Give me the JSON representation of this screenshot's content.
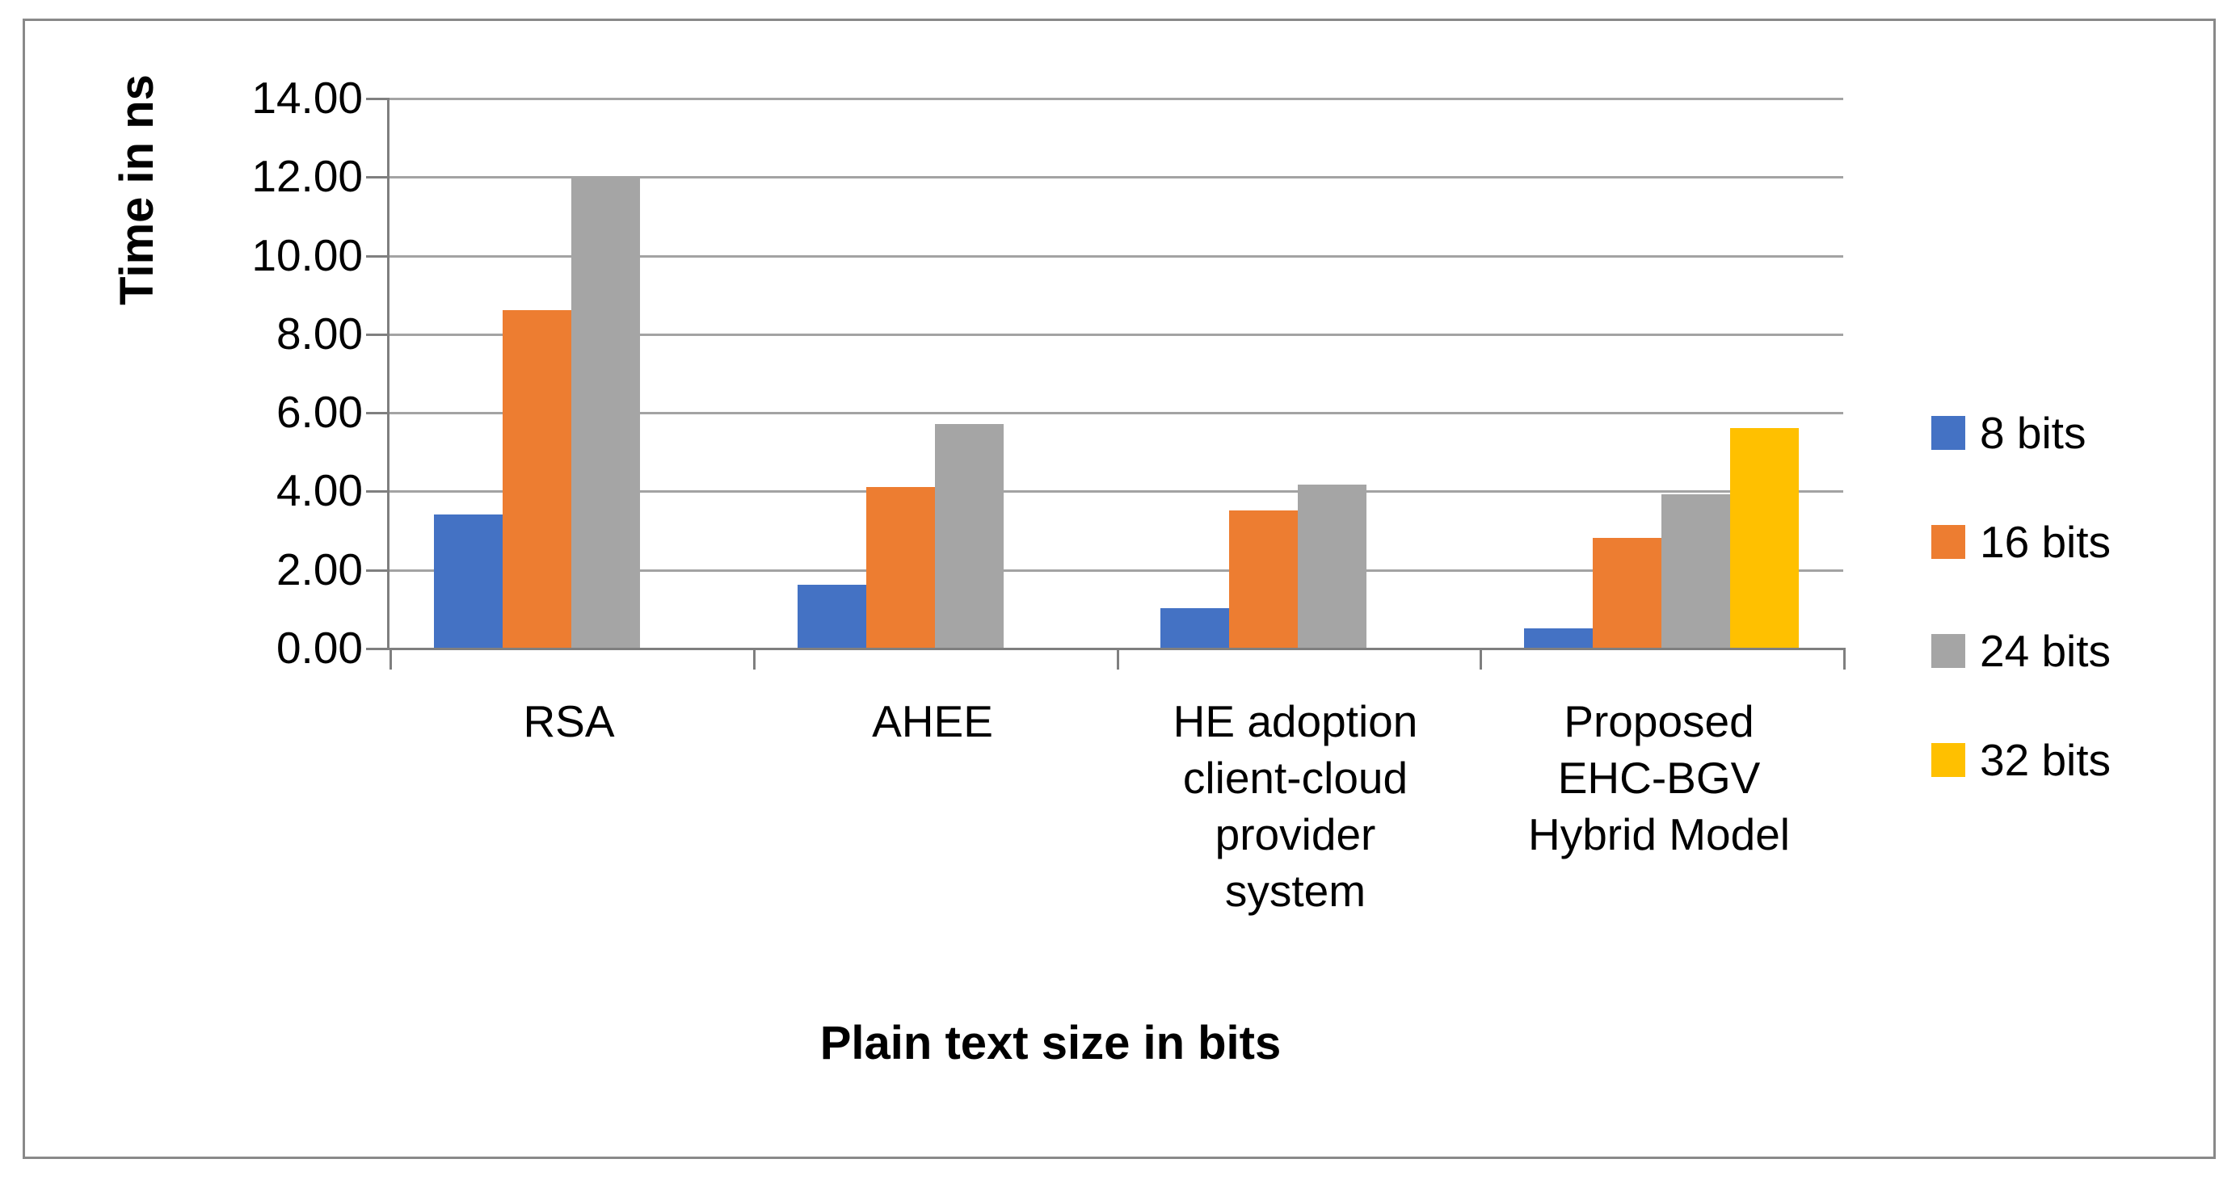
{
  "chart_data": {
    "type": "bar",
    "title": "",
    "categories": [
      "RSA",
      "AHEE",
      "HE adoption client-cloud provider system",
      "Proposed EHC-BGV Hybrid Model"
    ],
    "category_display_lines": [
      [
        "RSA"
      ],
      [
        "AHEE"
      ],
      [
        "HE adoption",
        "client-cloud",
        "provider",
        "system"
      ],
      [
        "Proposed",
        "EHC-BGV",
        "Hybrid Model"
      ]
    ],
    "series": [
      {
        "name": "8 bits",
        "color": "#4472C4",
        "values": [
          3.4,
          1.6,
          1.0,
          0.5
        ]
      },
      {
        "name": "16 bits",
        "color": "#ED7D31",
        "values": [
          8.6,
          4.1,
          3.5,
          2.8
        ]
      },
      {
        "name": "24 bits",
        "color": "#A5A5A5",
        "values": [
          12.0,
          5.7,
          4.15,
          3.9
        ]
      },
      {
        "name": "32 bits",
        "color": "#FFC000",
        "values": [
          null,
          null,
          null,
          5.6
        ]
      }
    ],
    "xlabel": "Plain text size in bits",
    "ylabel": "Time in ns",
    "ylim": [
      0,
      14
    ],
    "ytick_step": 2,
    "ytick_labels": [
      "0.00",
      "2.00",
      "4.00",
      "6.00",
      "8.00",
      "10.00",
      "12.00",
      "14.00"
    ],
    "grid": true,
    "legend_position": "right",
    "colors": {
      "gridline": "#a3a3a3",
      "axis": "#7f7f7f",
      "figure_border": "#898989",
      "text": "#000000"
    }
  }
}
